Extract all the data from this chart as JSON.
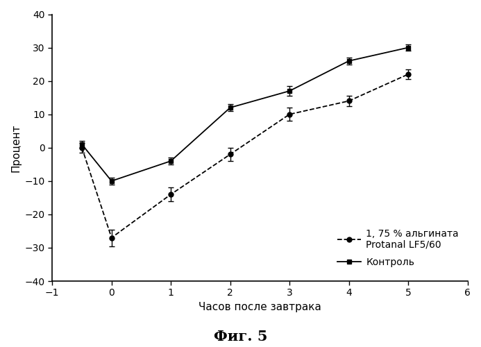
{
  "alginate_x": [
    -0.5,
    0,
    1,
    2,
    3,
    4,
    5
  ],
  "alginate_y": [
    0,
    -27,
    -14,
    -2,
    10,
    14,
    22
  ],
  "alginate_yerr": [
    1.5,
    2.5,
    2.0,
    2.0,
    2.0,
    1.5,
    1.5
  ],
  "control_x": [
    -0.5,
    0,
    1,
    2,
    3,
    4,
    5
  ],
  "control_y": [
    1,
    -10,
    -4,
    12,
    17,
    26,
    30
  ],
  "control_yerr": [
    1.0,
    1.0,
    1.0,
    1.0,
    1.5,
    1.0,
    1.0
  ],
  "xlabel": "Часов после завтрака",
  "ylabel": "Процент",
  "legend_alginate_line1": "1, 75 % альгината",
  "legend_alginate_line2": "Protanal LF5/60",
  "legend_control": "Контроль",
  "figure_label": "Фиг. 5",
  "xlim": [
    -1,
    6
  ],
  "ylim": [
    -40,
    40
  ],
  "yticks": [
    -40,
    -30,
    -20,
    -10,
    0,
    10,
    20,
    30,
    40
  ],
  "xticks": [
    -1,
    0,
    1,
    2,
    3,
    4,
    5,
    6
  ],
  "bg_color": "#ffffff",
  "line_color": "#000000"
}
